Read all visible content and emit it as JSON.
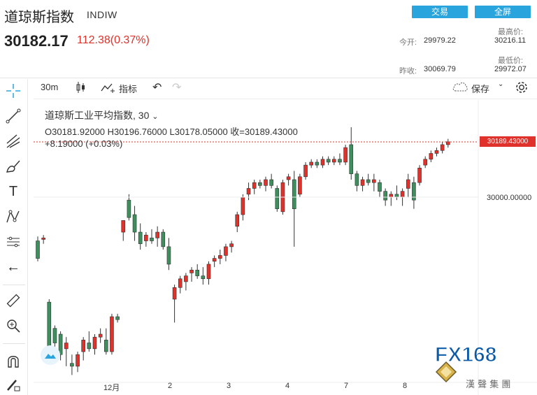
{
  "header": {
    "title": "道琼斯指数",
    "symbol": "INDIW",
    "price": "30182.17",
    "change": "112.38(0.37%)",
    "buttons": {
      "trade": "交易",
      "fullscreen": "全屏"
    },
    "stats": {
      "open_label": "今开:",
      "open_value": "29979.22",
      "high_label": "最高价:",
      "high_value": "30216.11",
      "prev_label": "昨收:",
      "prev_value": "30069.79",
      "low_label": "最低价:",
      "low_value": "29972.07"
    }
  },
  "toolbar": {
    "interval": "30m",
    "indicators": "指标",
    "save": "保存"
  },
  "legend": {
    "name": "道琼斯工业平均指数, 30",
    "ohlc": "O30181.92000  H30196.76000  L30178.05000  收=30189.43000",
    "delta": "+8.19000 (+0.03%)"
  },
  "axis": {
    "current_price": "30189.43000",
    "price_30000": "30000.00000",
    "x_labels": [
      "12月",
      "2",
      "3",
      "4",
      "7",
      "8"
    ]
  },
  "colors": {
    "up": "#e0312a",
    "down": "#3e8e5e",
    "accent": "#2aa4dc"
  },
  "logo": {
    "text": "FX168",
    "sub": "漢 聲 集 團"
  },
  "chart_data": {
    "type": "candlestick",
    "y_unit": "index points",
    "reference_lines": [
      30189.43,
      30000
    ],
    "candles": [
      [
        29850,
        29865,
        29780,
        29790
      ],
      [
        29855,
        29870,
        29840,
        29860
      ],
      [
        29640,
        29650,
        29470,
        29490
      ],
      [
        29550,
        29560,
        29480,
        29500
      ],
      [
        29530,
        29540,
        29440,
        29460
      ],
      [
        29480,
        29520,
        29420,
        29500
      ],
      [
        29430,
        29460,
        29390,
        29420
      ],
      [
        29420,
        29470,
        29400,
        29460
      ],
      [
        29470,
        29520,
        29440,
        29510
      ],
      [
        29500,
        29540,
        29470,
        29480
      ],
      [
        29480,
        29530,
        29460,
        29520
      ],
      [
        29520,
        29550,
        29500,
        29530
      ],
      [
        29510,
        29550,
        29460,
        29470
      ],
      [
        29470,
        29600,
        29460,
        29590
      ],
      [
        29590,
        29600,
        29570,
        29580
      ],
      [
        29880,
        29920,
        29850,
        29920
      ],
      [
        29990,
        30010,
        29920,
        29930
      ],
      [
        29940,
        29970,
        29850,
        29880
      ],
      [
        29880,
        29910,
        29820,
        29840
      ],
      [
        29850,
        29880,
        29830,
        29870
      ],
      [
        29860,
        29890,
        29840,
        29850
      ],
      [
        29860,
        29900,
        29830,
        29880
      ],
      [
        29880,
        29890,
        29820,
        29830
      ],
      [
        29830,
        29860,
        29750,
        29770
      ],
      [
        29650,
        29700,
        29570,
        29690
      ],
      [
        29690,
        29730,
        29670,
        29720
      ],
      [
        29710,
        29740,
        29680,
        29730
      ],
      [
        29740,
        29760,
        29710,
        29750
      ],
      [
        29750,
        29770,
        29720,
        29730
      ],
      [
        29730,
        29760,
        29700,
        29720
      ],
      [
        29720,
        29780,
        29700,
        29770
      ],
      [
        29780,
        29800,
        29760,
        29790
      ],
      [
        29790,
        29820,
        29770,
        29800
      ],
      [
        29800,
        29840,
        29780,
        29830
      ],
      [
        29830,
        29850,
        29810,
        29840
      ],
      [
        29900,
        29950,
        29880,
        29940
      ],
      [
        29940,
        30010,
        29920,
        30000
      ],
      [
        30010,
        30050,
        29990,
        30030
      ],
      [
        30030,
        30060,
        30010,
        30050
      ],
      [
        30050,
        30060,
        30030,
        30040
      ],
      [
        30040,
        30070,
        30020,
        30060
      ],
      [
        30060,
        30080,
        30030,
        30040
      ],
      [
        30030,
        30040,
        29950,
        29960
      ],
      [
        29950,
        30060,
        29940,
        30050
      ],
      [
        30060,
        30080,
        30040,
        30070
      ],
      [
        30060,
        30090,
        29830,
        29960
      ],
      [
        30010,
        30080,
        30000,
        30070
      ],
      [
        30070,
        30120,
        30060,
        30110
      ],
      [
        30110,
        30130,
        30100,
        30120
      ],
      [
        30120,
        30130,
        30100,
        30110
      ],
      [
        30110,
        30140,
        30100,
        30130
      ],
      [
        30130,
        30140,
        30110,
        30120
      ],
      [
        30120,
        30140,
        30110,
        30130
      ],
      [
        30130,
        30150,
        30110,
        30120
      ],
      [
        30120,
        30180,
        30110,
        30170
      ],
      [
        30180,
        30240,
        30060,
        30080
      ],
      [
        30080,
        30090,
        30020,
        30040
      ],
      [
        30040,
        30070,
        30020,
        30060
      ],
      [
        30060,
        30080,
        30040,
        30050
      ],
      [
        30050,
        30080,
        30020,
        30060
      ],
      [
        30050,
        30060,
        30000,
        30020
      ],
      [
        30020,
        30030,
        29970,
        29990
      ],
      [
        30000,
        30020,
        29970,
        30010
      ],
      [
        30010,
        30040,
        29990,
        30000
      ],
      [
        30000,
        30030,
        29970,
        30020
      ],
      [
        30030,
        30080,
        30000,
        30060
      ],
      [
        30050,
        30070,
        29960,
        29990
      ],
      [
        30050,
        30110,
        30040,
        30100
      ],
      [
        30110,
        30140,
        30100,
        30130
      ],
      [
        30130,
        30160,
        30120,
        30150
      ],
      [
        30150,
        30170,
        30140,
        30160
      ],
      [
        30160,
        30190,
        30150,
        30180
      ],
      [
        30180,
        30200,
        30170,
        30190
      ]
    ]
  }
}
